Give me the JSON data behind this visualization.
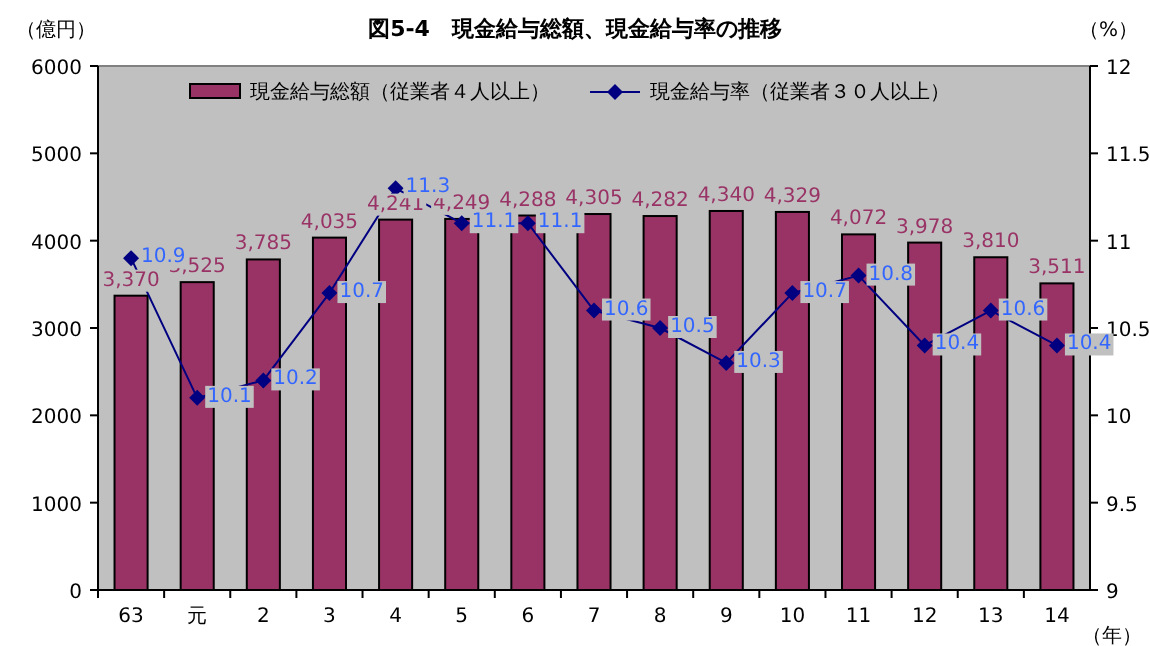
{
  "chart_data": {
    "type": "bar",
    "title": "図5-4　現金給与総額、現金給与率の推移",
    "ylabel": "（億円）",
    "y2label": "（%）",
    "xlabel": "（年）",
    "categories": [
      "63",
      "元",
      "2",
      "3",
      "4",
      "5",
      "6",
      "7",
      "8",
      "9",
      "10",
      "11",
      "12",
      "13",
      "14"
    ],
    "series": [
      {
        "name": "現金給与総額（従業者４人以上）",
        "type": "bar",
        "color": "#993366",
        "values": [
          3370,
          3525,
          3785,
          4035,
          4241,
          4249,
          4288,
          4305,
          4282,
          4340,
          4329,
          4072,
          3978,
          3810,
          3511
        ],
        "value_labels": [
          "3,370",
          "3,525",
          "3,785",
          "4,035",
          "4,241",
          "4,249",
          "4,288",
          "4,305",
          "4,282",
          "4,340",
          "4,329",
          "4,072",
          "3,978",
          "3,810",
          "3,511"
        ]
      },
      {
        "name": "現金給与率（従業者３０人以上）",
        "type": "line",
        "axis": "y2",
        "color": "#000080",
        "marker": "diamond",
        "values": [
          10.9,
          10.1,
          10.2,
          10.7,
          11.3,
          11.1,
          11.1,
          10.6,
          10.5,
          10.3,
          10.7,
          10.8,
          10.4,
          10.6,
          10.4
        ]
      }
    ],
    "ylim": [
      0,
      6000
    ],
    "yticks": [
      0,
      1000,
      2000,
      3000,
      4000,
      5000,
      6000
    ],
    "y2lim": [
      9,
      12
    ],
    "y2ticks": [
      9,
      9.5,
      10,
      10.5,
      11,
      11.5,
      12
    ],
    "data_labels": true,
    "legend": "top",
    "grid": false
  }
}
